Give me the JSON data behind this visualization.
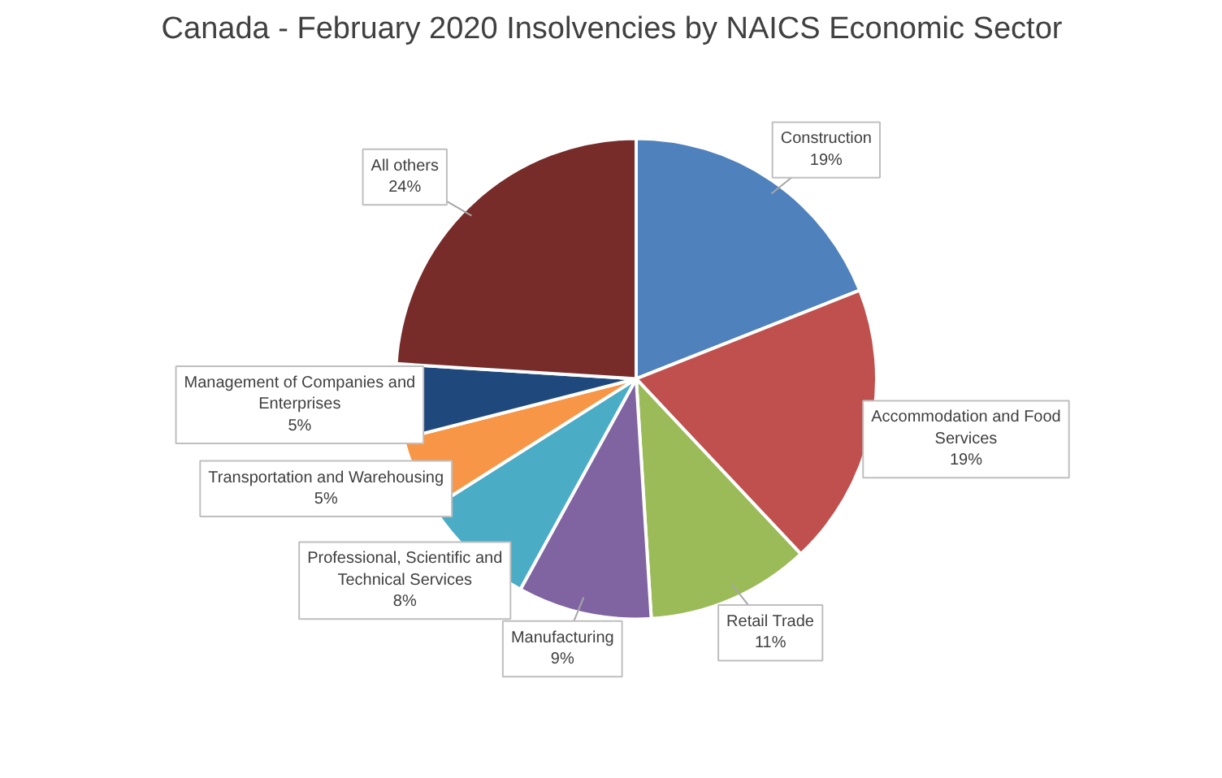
{
  "chart_data": {
    "type": "pie",
    "title": "Canada - February 2020 Insolvencies by NAICS Economic Sector",
    "categories": [
      "Construction",
      "Accommodation and Food Services",
      "Retail Trade",
      "Manufacturing",
      "Professional, Scientific and Technical Services",
      "Transportation and Warehousing",
      "Management of Companies and Enterprises",
      "All others"
    ],
    "values": [
      19,
      19,
      11,
      9,
      8,
      5,
      5,
      24
    ],
    "value_labels": [
      "19%",
      "19%",
      "11%",
      "9%",
      "8%",
      "5%",
      "5%",
      "24%"
    ],
    "colors": [
      "#4f81bd",
      "#c0504d",
      "#9bbb59",
      "#8064a2",
      "#4bacc6",
      "#f79646",
      "#1f497d",
      "#772c2a"
    ]
  }
}
